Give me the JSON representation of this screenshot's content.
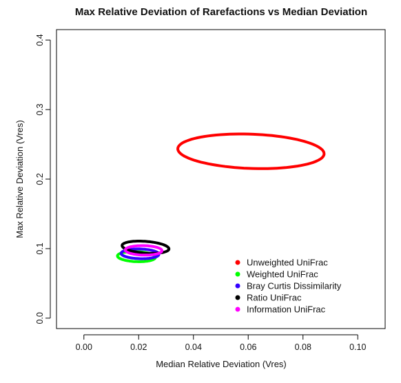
{
  "chart_data": {
    "type": "ellipse",
    "title": "Max Relative Deviation of Rarefactions vs Median Deviation",
    "xlabel": "Median Relative Deviation (Vres)",
    "ylabel": "Max Relative Deviation (Vres)",
    "xlim": [
      -0.01,
      0.11
    ],
    "ylim": [
      -0.015,
      0.415
    ],
    "xticks": [
      "0.00",
      "0.02",
      "0.04",
      "0.06",
      "0.08",
      "0.10"
    ],
    "xtick_values": [
      0.0,
      0.02,
      0.04,
      0.06,
      0.08,
      0.1
    ],
    "yticks": [
      "0.0",
      "0.1",
      "0.2",
      "0.3",
      "0.4"
    ],
    "ytick_values": [
      0.0,
      0.1,
      0.2,
      0.3,
      0.4
    ],
    "grid": false,
    "legend_position": "bottom-right",
    "series": [
      {
        "name": "Unweighted UniFrac",
        "color": "#ff0000",
        "ellipse": {
          "center": [
            0.061,
            0.24
          ],
          "semi_major": 0.0278,
          "semi_minor": 0.0237,
          "angle_deg": -32
        }
      },
      {
        "name": "Weighted UniFrac",
        "color": "#00ff00",
        "ellipse": {
          "center": [
            0.0192,
            0.0885
          ],
          "semi_major": 0.0076,
          "semi_minor": 0.0066,
          "angle_deg": -55
        }
      },
      {
        "name": "Bray Curtis Dissimilarity",
        "color": "#3300ff",
        "ellipse": {
          "center": [
            0.0205,
            0.0925
          ],
          "semi_major": 0.0073,
          "semi_minor": 0.0066,
          "angle_deg": -50
        }
      },
      {
        "name": "Ratio UniFrac",
        "color": "#000000",
        "ellipse": {
          "center": [
            0.0225,
            0.102
          ],
          "semi_major": 0.0098,
          "semi_minor": 0.0074,
          "angle_deg": -48
        }
      },
      {
        "name": "Information UniFrac",
        "color": "#ff00ff",
        "ellipse": {
          "center": [
            0.0218,
            0.0975
          ],
          "semi_major": 0.007,
          "semi_minor": 0.0065,
          "angle_deg": -50
        }
      }
    ]
  }
}
